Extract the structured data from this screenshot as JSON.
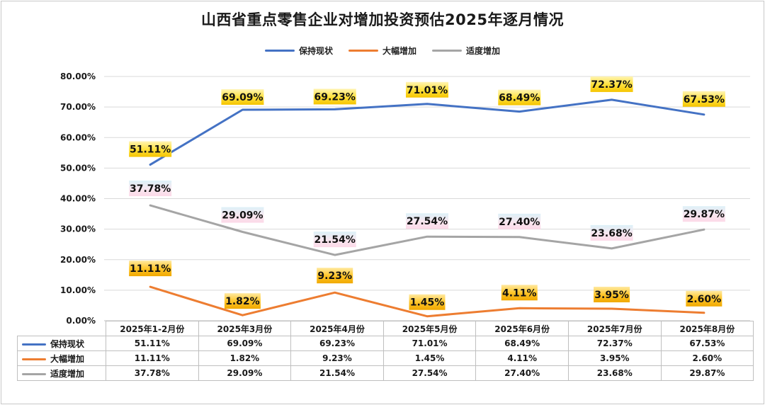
{
  "chart_data": {
    "type": "line",
    "title": "山西省重点零售企业对增加投资预估2025年逐月情况",
    "categories": [
      "2025年1-2月份",
      "2025年3月份",
      "2025年4月份",
      "2025年5月份",
      "2025年6月份",
      "2025年7月份",
      "2025年8月份"
    ],
    "series": [
      {
        "name": "保持现状",
        "color": "#4472C4",
        "values": [
          51.11,
          69.09,
          69.23,
          71.01,
          68.49,
          72.37,
          67.53
        ],
        "labels": [
          "51.11%",
          "69.09%",
          "69.23%",
          "71.01%",
          "68.49%",
          "72.37%",
          "67.53%"
        ]
      },
      {
        "name": "大幅增加",
        "color": "#ED7D31",
        "values": [
          11.11,
          1.82,
          9.23,
          1.45,
          4.11,
          3.95,
          2.6
        ],
        "labels": [
          "11.11%",
          "1.82%",
          "9.23%",
          "1.45%",
          "4.11%",
          "3.95%",
          "2.60%"
        ]
      },
      {
        "name": "适度增加",
        "color": "#A5A5A5",
        "values": [
          37.78,
          29.09,
          21.54,
          27.54,
          27.4,
          23.68,
          29.87
        ],
        "labels": [
          "37.78%",
          "29.09%",
          "21.54%",
          "27.54%",
          "27.40%",
          "23.68%",
          "29.87%"
        ]
      }
    ],
    "yticks": [
      "0.00%",
      "10.00%",
      "20.00%",
      "30.00%",
      "40.00%",
      "50.00%",
      "60.00%",
      "70.00%",
      "80.00%"
    ],
    "ylim": [
      0,
      80
    ],
    "grid": true,
    "legend": "top",
    "data_table": true
  }
}
